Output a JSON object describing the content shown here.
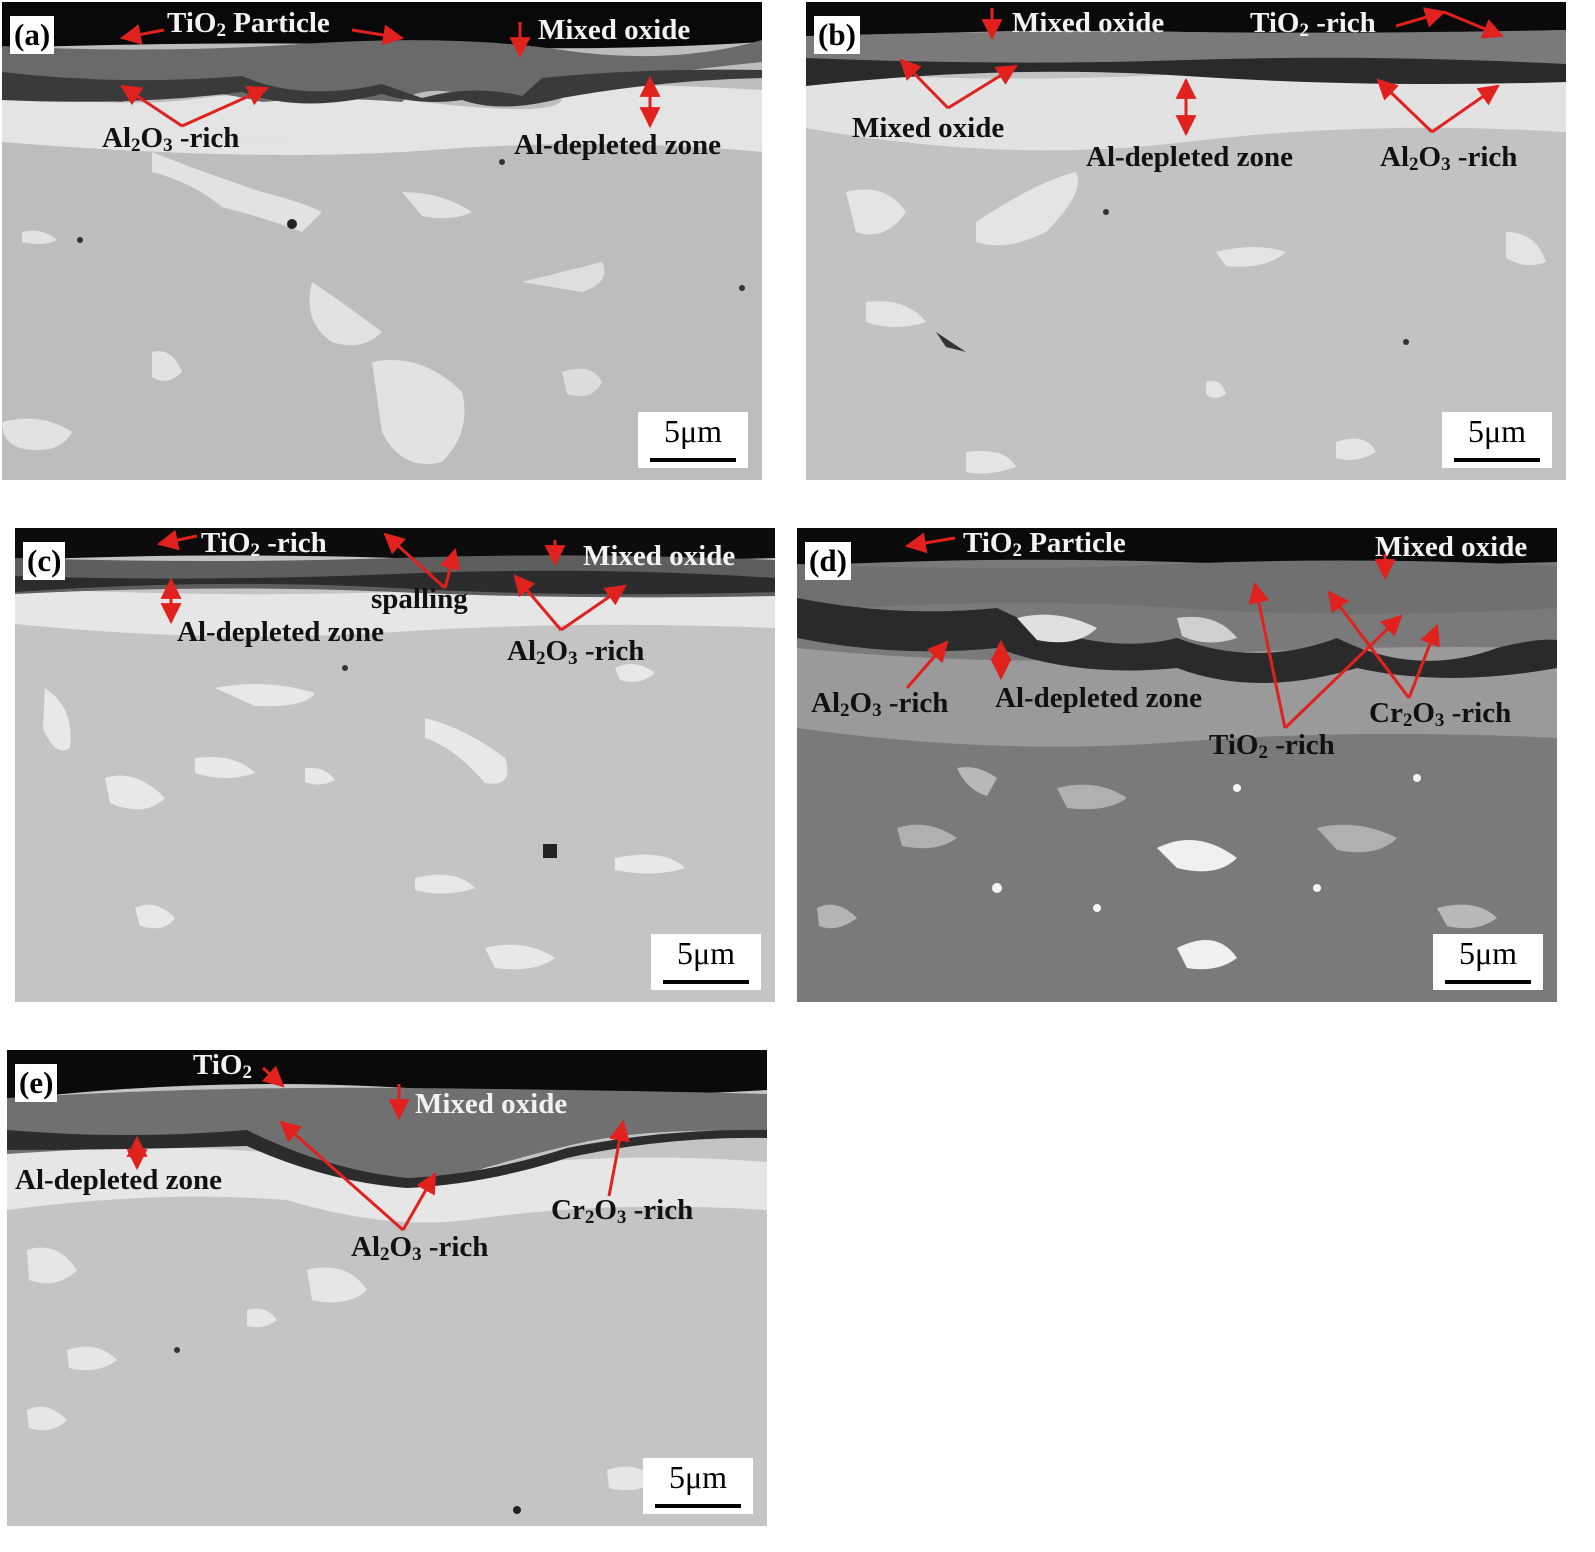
{
  "colors": {
    "arrow": "#e0211d",
    "oxide_scale": "#0a0a0a",
    "matrix": "#bfbfbf",
    "depleted": "#e4e4e4"
  },
  "panels": {
    "a": {
      "label": "(a)",
      "scale": "5μm",
      "texts": {
        "tio2_particle": {
          "t1": "TiO",
          "sub": "2",
          "t2": " Particle"
        },
        "mixed_oxide": "Mixed oxide",
        "al2o3_rich": {
          "t1": "Al",
          "s1": "2",
          "t2": "O",
          "s2": "3",
          "t3": " -rich"
        },
        "al_depleted": "Al-depleted zone"
      }
    },
    "b": {
      "label": "(b)",
      "scale": "5μm",
      "texts": {
        "mixed_oxide_top": "Mixed oxide",
        "tio2_rich": {
          "t1": "TiO",
          "sub": "2",
          "t2": " -rich"
        },
        "mixed_oxide_low": "Mixed oxide",
        "al_depleted": "Al-depleted zone",
        "al2o3_rich": {
          "t1": "Al",
          "s1": "2",
          "t2": "O",
          "s2": "3",
          "t3": " -rich"
        }
      }
    },
    "c": {
      "label": "(c)",
      "scale": "5μm",
      "texts": {
        "tio2_rich": {
          "t1": "TiO",
          "sub": "2",
          "t2": " -rich"
        },
        "mixed_oxide": "Mixed oxide",
        "spalling": "spalling",
        "al_depleted": "Al-depleted zone",
        "al2o3_rich": {
          "t1": "Al",
          "s1": "2",
          "t2": "O",
          "s2": "3",
          "t3": " -rich"
        }
      }
    },
    "d": {
      "label": "(d)",
      "scale": "5μm",
      "texts": {
        "tio2_particle": {
          "t1": "TiO",
          "sub": "2",
          "t2": " Particle"
        },
        "mixed_oxide": "Mixed oxide",
        "al2o3_rich": {
          "t1": "Al",
          "s1": "2",
          "t2": "O",
          "s2": "3",
          "t3": " -rich"
        },
        "al_depleted": "Al-depleted zone",
        "cr2o3_rich": {
          "t1": "Cr",
          "s1": "2",
          "t2": "O",
          "s2": "3",
          "t3": " -rich"
        },
        "tio2_rich": {
          "t1": "TiO",
          "sub": "2",
          "t2": " -rich"
        }
      }
    },
    "e": {
      "label": "(e)",
      "scale": "5μm",
      "texts": {
        "tio2": {
          "t1": "TiO",
          "sub": "2"
        },
        "mixed_oxide": "Mixed oxide",
        "al_depleted": "Al-depleted zone",
        "cr2o3_rich": {
          "t1": "Cr",
          "s1": "2",
          "t2": "O",
          "s2": "3",
          "t3": " -rich"
        },
        "al2o3_rich": {
          "t1": "Al",
          "s1": "2",
          "t2": "O",
          "s2": "3",
          "t3": " -rich"
        }
      }
    }
  }
}
